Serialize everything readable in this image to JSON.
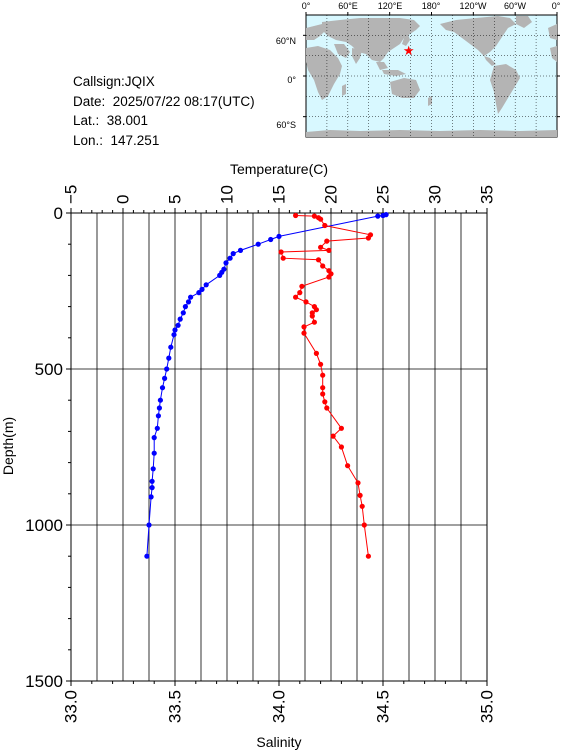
{
  "info": {
    "callsign": "Callsign:JQIX",
    "date": "Date:  2025/07/22 08:17(UTC)",
    "lat": "Lat.:  38.001",
    "lon": "Lon.:  147.251"
  },
  "map": {
    "lon_labels": [
      "0°",
      "60°E",
      "120°E",
      "180°",
      "120°W",
      "60°W",
      "0°"
    ],
    "lat_labels": [
      "60°N",
      "0°",
      "60°S"
    ],
    "ocean_color": "#d8f8ff",
    "land_color": "#b4b4b4",
    "marker_color": "#ff0000",
    "station": {
      "lon": 147.251,
      "lat": 38.001
    }
  },
  "chart_data": {
    "type": "line",
    "top_axis": {
      "label": "Temperature(C)",
      "range": [
        -5,
        35
      ],
      "ticks": [
        -5,
        0,
        5,
        10,
        15,
        20,
        25,
        30,
        35
      ]
    },
    "bottom_axis": {
      "label": "Salinity",
      "range": [
        33.0,
        35.0
      ],
      "ticks": [
        33.0,
        33.5,
        34.0,
        34.5,
        35.0
      ],
      "tick_labels": [
        "33.0",
        "33.5",
        "34.0",
        "34.5",
        "35.0"
      ]
    },
    "y_axis": {
      "label": "Depth(m)",
      "range": [
        0,
        1500
      ],
      "inverted": true,
      "ticks": [
        0,
        500,
        1000,
        1500
      ]
    },
    "grid": true,
    "series": [
      {
        "axis": "temperature",
        "color": "#0000ff",
        "points": [
          [
            25.3,
            5
          ],
          [
            25.0,
            8
          ],
          [
            24.5,
            10
          ],
          [
            15.0,
            75
          ],
          [
            14.2,
            85
          ],
          [
            13.0,
            100
          ],
          [
            11.3,
            120
          ],
          [
            10.6,
            130
          ],
          [
            10.3,
            145
          ],
          [
            9.9,
            160
          ],
          [
            9.7,
            180
          ],
          [
            9.5,
            190
          ],
          [
            9.3,
            200
          ],
          [
            8.0,
            230
          ],
          [
            7.6,
            245
          ],
          [
            7.3,
            255
          ],
          [
            6.5,
            270
          ],
          [
            6.3,
            285
          ],
          [
            6.0,
            300
          ],
          [
            5.8,
            320
          ],
          [
            5.5,
            340
          ],
          [
            5.3,
            360
          ],
          [
            5.0,
            375
          ],
          [
            4.9,
            390
          ],
          [
            4.6,
            430
          ],
          [
            4.4,
            465
          ],
          [
            4.2,
            500
          ],
          [
            4.0,
            530
          ],
          [
            3.8,
            560
          ],
          [
            3.6,
            600
          ],
          [
            3.5,
            625
          ],
          [
            3.4,
            650
          ],
          [
            3.3,
            690
          ],
          [
            3.0,
            720
          ],
          [
            3.0,
            770
          ],
          [
            2.9,
            820
          ],
          [
            2.8,
            860
          ],
          [
            2.8,
            880
          ],
          [
            2.7,
            910
          ],
          [
            2.5,
            1000
          ],
          [
            2.3,
            1100
          ]
        ]
      },
      {
        "axis": "salinity",
        "color": "#ff0000",
        "points": [
          [
            34.08,
            8
          ],
          [
            34.17,
            10
          ],
          [
            34.19,
            15
          ],
          [
            34.2,
            20
          ],
          [
            34.22,
            40
          ],
          [
            34.44,
            70
          ],
          [
            34.43,
            80
          ],
          [
            34.23,
            90
          ],
          [
            34.2,
            110
          ],
          [
            34.24,
            120
          ],
          [
            34.01,
            125
          ],
          [
            34.02,
            145
          ],
          [
            34.19,
            150
          ],
          [
            34.21,
            170
          ],
          [
            34.24,
            185
          ],
          [
            34.25,
            195
          ],
          [
            34.24,
            205
          ],
          [
            34.11,
            235
          ],
          [
            34.1,
            255
          ],
          [
            34.08,
            270
          ],
          [
            34.13,
            285
          ],
          [
            34.17,
            300
          ],
          [
            34.18,
            310
          ],
          [
            34.16,
            320
          ],
          [
            34.16,
            330
          ],
          [
            34.17,
            350
          ],
          [
            34.12,
            365
          ],
          [
            34.12,
            385
          ],
          [
            34.18,
            450
          ],
          [
            34.2,
            485
          ],
          [
            34.21,
            520
          ],
          [
            34.21,
            560
          ],
          [
            34.21,
            580
          ],
          [
            34.22,
            605
          ],
          [
            34.23,
            625
          ],
          [
            34.3,
            690
          ],
          [
            34.26,
            715
          ],
          [
            34.3,
            750
          ],
          [
            34.33,
            810
          ],
          [
            34.38,
            865
          ],
          [
            34.39,
            905
          ],
          [
            34.4,
            940
          ],
          [
            34.41,
            1000
          ],
          [
            34.43,
            1100
          ]
        ]
      }
    ]
  }
}
